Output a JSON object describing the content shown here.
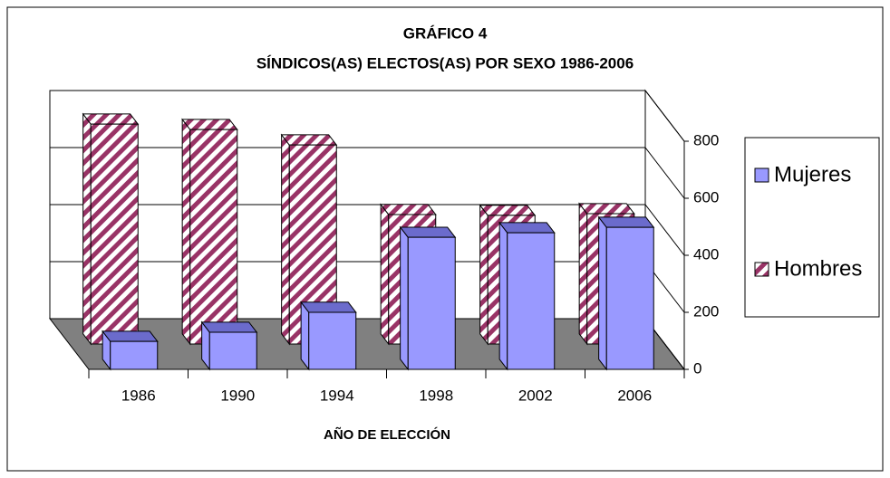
{
  "chart_data": {
    "type": "bar3d",
    "title": "GRÁFICO 4",
    "subtitle": "SÍNDICOS(AS)  ELECTOS(AS) POR SEXO 1986-2006",
    "x_label": "AÑO DE ELECCIÓN",
    "categories": [
      "1986",
      "1990",
      "1994",
      "1998",
      "2002",
      "2006"
    ],
    "series": [
      {
        "name": "Mujeres",
        "color": "#9999ff",
        "values": [
          98,
          130,
          200,
          463,
          479,
          498
        ]
      },
      {
        "name": "Hombres",
        "color": "#993366",
        "values": [
          771,
          752,
          698,
          454,
          451,
          457
        ]
      }
    ],
    "ylim": [
      0,
      800
    ],
    "yticks": [
      0,
      200,
      400,
      600,
      800
    ],
    "grid": true,
    "legend": "right"
  }
}
